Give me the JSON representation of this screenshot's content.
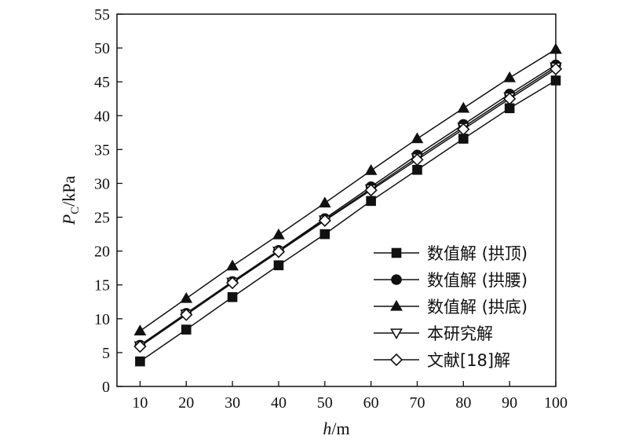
{
  "chart_data": {
    "type": "line",
    "xlabel": "h/m",
    "ylabel": "P_C/kPa",
    "x": [
      10,
      20,
      30,
      40,
      50,
      60,
      70,
      80,
      90,
      100
    ],
    "xlim": [
      5,
      100
    ],
    "ylim": [
      0,
      55
    ],
    "xticks": [
      10,
      20,
      30,
      40,
      50,
      60,
      70,
      80,
      90,
      100
    ],
    "yticks": [
      0,
      5,
      10,
      15,
      20,
      25,
      30,
      35,
      40,
      45,
      50,
      55
    ],
    "grid": false,
    "legend_position": "bottom-right",
    "series": [
      {
        "name": "数值解 (拱顶)",
        "marker": "square-filled",
        "values": [
          3.7,
          8.4,
          13.2,
          17.9,
          22.5,
          27.4,
          32.0,
          36.6,
          41.1,
          45.2
        ]
      },
      {
        "name": "数值解 (拱腰)",
        "marker": "circle-filled",
        "values": [
          6.1,
          10.8,
          15.5,
          20.1,
          24.8,
          29.5,
          34.2,
          38.7,
          43.2,
          47.5
        ]
      },
      {
        "name": "数值解 (拱底)",
        "marker": "triangle-up-filled",
        "values": [
          8.2,
          13.0,
          17.8,
          22.4,
          27.1,
          31.9,
          36.6,
          41.1,
          45.6,
          49.8
        ]
      },
      {
        "name": "本研究解",
        "marker": "triangle-down-open",
        "values": [
          6.0,
          10.7,
          15.4,
          20.0,
          24.6,
          29.2,
          33.8,
          38.3,
          42.8,
          47.2
        ]
      },
      {
        "name": "文献[18]解",
        "marker": "diamond-open",
        "values": [
          5.9,
          10.6,
          15.3,
          19.9,
          24.5,
          29.0,
          33.5,
          38.0,
          42.5,
          46.9
        ]
      }
    ]
  }
}
